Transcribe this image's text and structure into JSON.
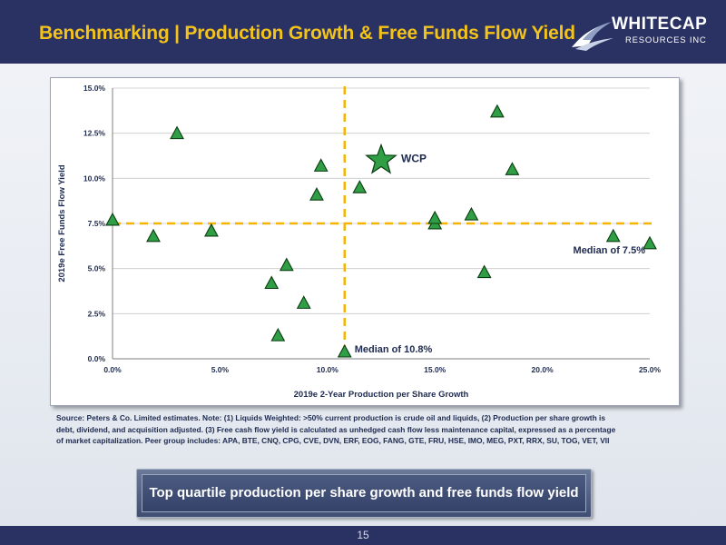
{
  "header": {
    "title": "Benchmarking | Production Growth & Free Funds Flow Yield"
  },
  "logo": {
    "name": "WHITECAP",
    "subtitle": "RESOURCES INC"
  },
  "chart_data": {
    "type": "scatter",
    "xlabel": "2019e 2-Year Production per Share Growth",
    "ylabel": "2019e Free Funds Flow Yield",
    "xlim": [
      0,
      25
    ],
    "ylim": [
      0,
      15
    ],
    "x_ticks": [
      "0.0%",
      "5.0%",
      "10.0%",
      "15.0%",
      "20.0%",
      "25.0%"
    ],
    "y_ticks": [
      "0.0%",
      "2.5%",
      "5.0%",
      "7.5%",
      "10.0%",
      "12.5%",
      "15.0%"
    ],
    "grid": "horizontal",
    "series": [
      {
        "marker": "triangle",
        "color": "#2f9e44",
        "points": [
          [
            0.0,
            7.7
          ],
          [
            1.9,
            6.8
          ],
          [
            3.0,
            12.5
          ],
          [
            4.6,
            7.1
          ],
          [
            7.4,
            4.2
          ],
          [
            7.7,
            1.3
          ],
          [
            8.1,
            5.2
          ],
          [
            8.9,
            3.1
          ],
          [
            9.5,
            9.1
          ],
          [
            9.7,
            10.7
          ],
          [
            10.8,
            0.4
          ],
          [
            11.5,
            9.5
          ],
          [
            15.0,
            7.5
          ],
          [
            15.0,
            7.8
          ],
          [
            16.7,
            8.0
          ],
          [
            17.3,
            4.8
          ],
          [
            17.9,
            13.7
          ],
          [
            18.6,
            10.5
          ],
          [
            23.3,
            6.8
          ],
          [
            25.0,
            6.4
          ]
        ]
      },
      {
        "name": "WCP",
        "marker": "star",
        "color": "#2f9e44",
        "points": [
          [
            12.5,
            11.0
          ]
        ]
      }
    ],
    "median_x": 10.8,
    "median_y": 7.5,
    "median_x_label": "Median of 10.8%",
    "median_y_label": "Median of 7.5%",
    "median_color": "#f5b400"
  },
  "source": {
    "text": "Source: Peters & Co. Limited estimates. Note: (1) Liquids Weighted: >50% current production is crude oil and liquids, (2) Production per share growth is debt, dividend, and acquisition adjusted. (3) Free cash flow yield is calculated as unhedged cash flow less maintenance capital, expressed as a percentage of market capitalization. Peer group includes: APA, BTE, CNQ, CPG, CVE, DVN, ERF, EOG, FANG, GTE, FRU, HSE, IMO, MEG, PXT, RRX, SU, TOG, VET, VII"
  },
  "callout": {
    "text": "Top quartile production per share growth and free funds flow yield"
  },
  "footer": {
    "page_number": "15"
  }
}
